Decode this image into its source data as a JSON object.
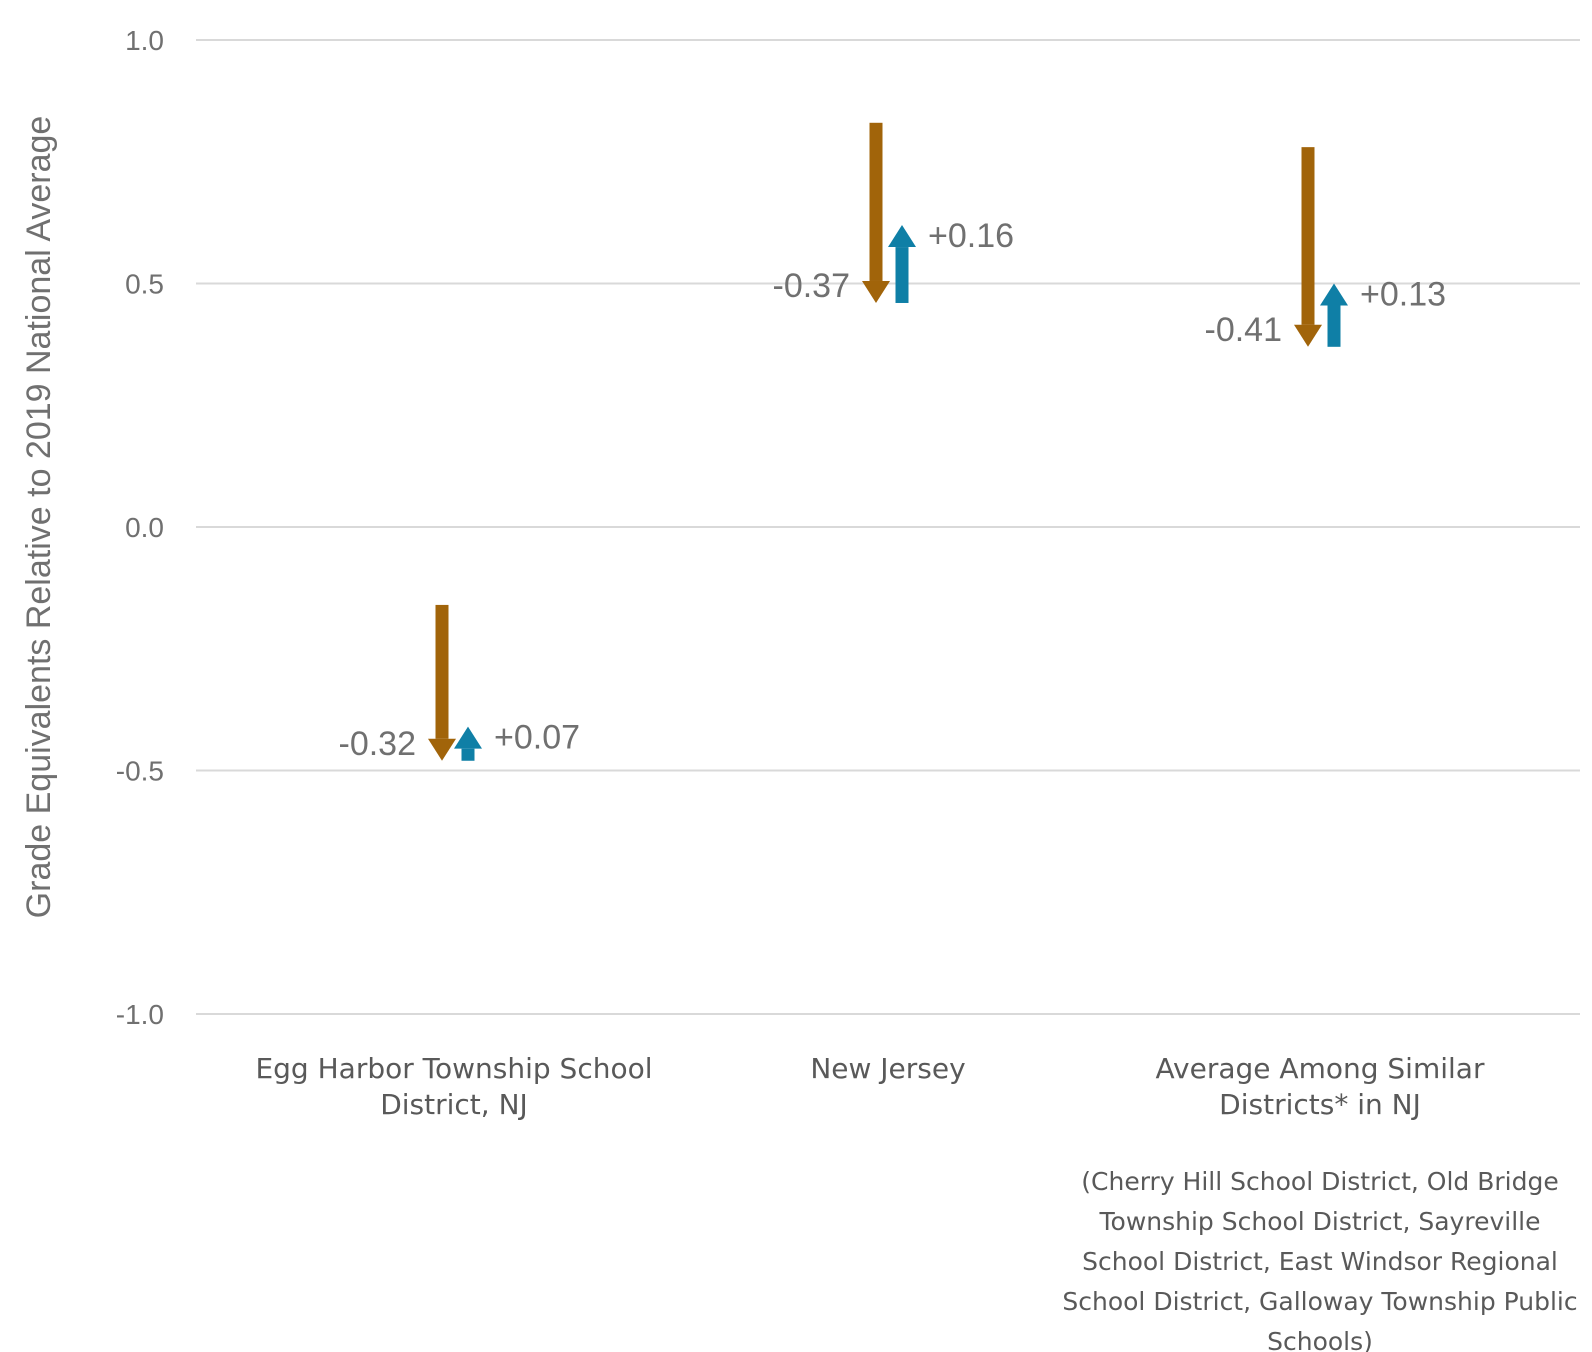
{
  "chart_data": {
    "type": "arrow",
    "ylabel": "Grade Equivalents Relative to 2019 National Average",
    "ylim": [
      -1.0,
      1.0
    ],
    "yticks": [
      1.0,
      0.5,
      0.0,
      -0.5,
      -1.0
    ],
    "ytick_labels": [
      "1.0",
      "0.5",
      "0.0",
      "-0.5",
      "-1.0"
    ],
    "grid": true,
    "colors": {
      "decline": "#a1640a",
      "recovery": "#0f7fa6"
    },
    "categories": [
      {
        "label_lines": [
          "Egg Harbor Township School",
          "District, NJ"
        ],
        "note_lines": [],
        "start": -0.16,
        "after_decline": -0.48,
        "after_recovery": -0.41,
        "decline_label": "-0.32",
        "recovery_label": "+0.07"
      },
      {
        "label_lines": [
          "New Jersey"
        ],
        "note_lines": [],
        "start": 0.83,
        "after_decline": 0.46,
        "after_recovery": 0.62,
        "decline_label": "-0.37",
        "recovery_label": "+0.16"
      },
      {
        "label_lines": [
          "Average Among Similar",
          "Districts* in NJ"
        ],
        "note_lines": [
          "(Cherry Hill School District, Old Bridge",
          "Township School District, Sayreville",
          "School District, East Windsor Regional",
          "School District, Galloway Township Public",
          "Schools)"
        ],
        "start": 0.78,
        "after_decline": 0.37,
        "after_recovery": 0.5,
        "decline_label": "-0.41",
        "recovery_label": "+0.13"
      }
    ]
  }
}
